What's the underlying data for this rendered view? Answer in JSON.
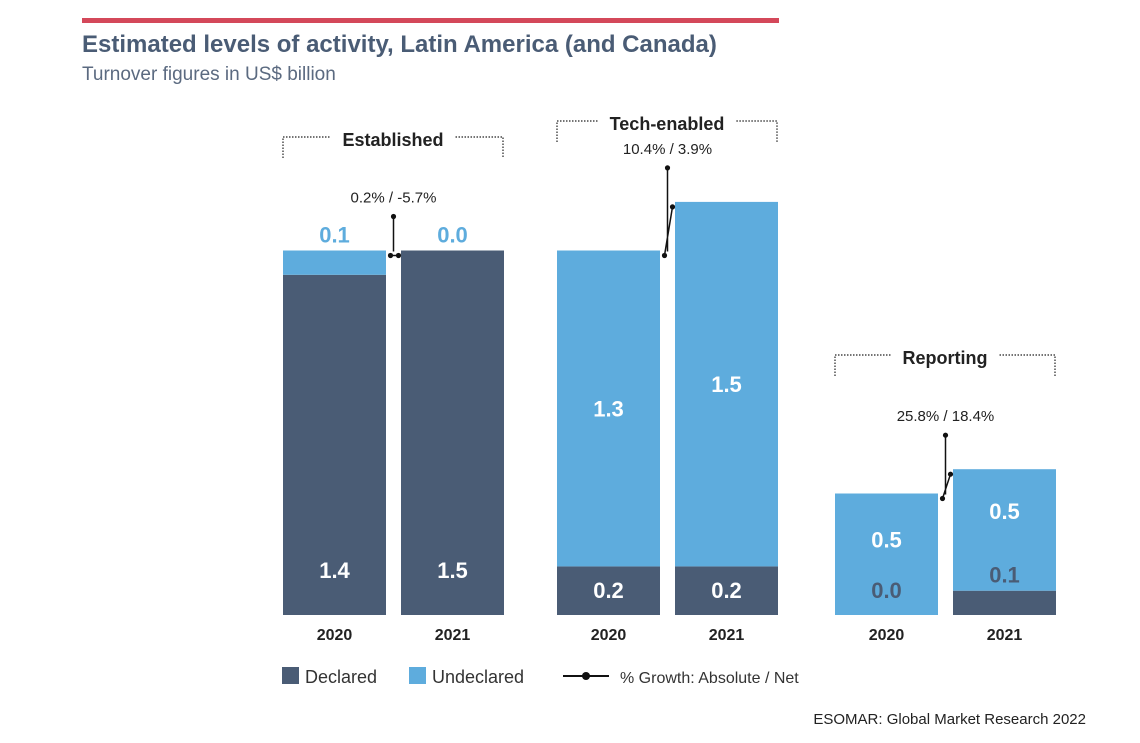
{
  "title": "Estimated levels of activity, Latin America (and Canada)",
  "subtitle": "Turnover figures in US$ billion",
  "source": "ESOMAR: Global Market Research 2022",
  "colors": {
    "declared": "#4a5c75",
    "undeclared": "#5eacdd",
    "accent": "#d4485a"
  },
  "chart_data": {
    "type": "bar",
    "stacked": true,
    "title": "Estimated levels of activity, Latin America (and Canada)",
    "subtitle": "Turnover figures in US$ billion",
    "groups": [
      {
        "name": "Established",
        "growth": "0.2% / -5.7%",
        "bars": [
          {
            "year": "2020",
            "declared": 1.4,
            "undeclared": 0.1,
            "declared_label": "1.4",
            "undeclared_label": "0.1",
            "undeclared_label_position": "above"
          },
          {
            "year": "2021",
            "declared": 1.5,
            "undeclared": 0.0,
            "declared_label": "1.5",
            "undeclared_label": "0.0",
            "undeclared_label_position": "above"
          }
        ]
      },
      {
        "name": "Tech-enabled",
        "growth": "10.4% / 3.9%",
        "bars": [
          {
            "year": "2020",
            "declared": 0.2,
            "undeclared": 1.3,
            "declared_label": "0.2",
            "undeclared_label": "1.3",
            "undeclared_label_position": "inside"
          },
          {
            "year": "2021",
            "declared": 0.2,
            "undeclared": 1.5,
            "declared_label": "0.2",
            "undeclared_label": "1.5",
            "undeclared_label_position": "inside"
          }
        ]
      },
      {
        "name": "Reporting",
        "growth": "25.8% / 18.4%",
        "bars": [
          {
            "year": "2020",
            "declared": 0.0,
            "undeclared": 0.5,
            "declared_label": "0.0",
            "undeclared_label": "0.5",
            "undeclared_label_position": "inside"
          },
          {
            "year": "2021",
            "declared": 0.1,
            "undeclared": 0.5,
            "declared_label": "0.1",
            "undeclared_label": "0.5",
            "undeclared_label_position": "inside"
          }
        ]
      }
    ],
    "legend": [
      {
        "key": "declared",
        "label": "Declared"
      },
      {
        "key": "undeclared",
        "label": "Undeclared"
      },
      {
        "key": "growth",
        "label": "% Growth: Absolute / Net"
      }
    ],
    "ylabel": "",
    "xlabel": ""
  }
}
